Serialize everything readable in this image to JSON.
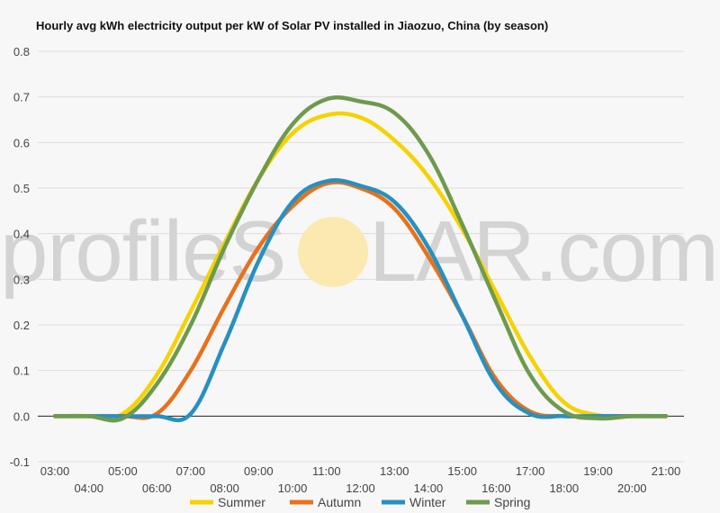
{
  "chart_data": {
    "type": "line",
    "title": "Hourly avg kWh electricity output per kW of Solar PV installed in Jiaozuo, China (by season)",
    "xlabel": "",
    "ylabel": "",
    "x": [
      3,
      4,
      5,
      6,
      7,
      8,
      9,
      10,
      11,
      12,
      13,
      14,
      15,
      16,
      17,
      18,
      19,
      20,
      21
    ],
    "x_tick_labels": [
      "03:00",
      "04:00",
      "05:00",
      "06:00",
      "07:00",
      "08:00",
      "09:00",
      "10:00",
      "11:00",
      "12:00",
      "13:00",
      "14:00",
      "15:00",
      "16:00",
      "17:00",
      "18:00",
      "19:00",
      "20:00",
      "21:00"
    ],
    "ylim": [
      -0.1,
      0.8
    ],
    "y_ticks": [
      -0.1,
      0.0,
      0.1,
      0.2,
      0.3,
      0.4,
      0.5,
      0.6,
      0.7,
      0.8
    ],
    "y_tick_labels": [
      "-0.1",
      "0.0",
      "0.1",
      "0.2",
      "0.3",
      "0.4",
      "0.5",
      "0.6",
      "0.7",
      "0.8"
    ],
    "grid": true,
    "legend_position": "bottom",
    "series": [
      {
        "name": "Summer",
        "color": "#f5d200",
        "values": [
          0,
          0,
          0.005,
          0.09,
          0.23,
          0.38,
          0.52,
          0.62,
          0.66,
          0.655,
          0.605,
          0.525,
          0.41,
          0.27,
          0.13,
          0.03,
          0.002,
          0,
          0
        ]
      },
      {
        "name": "Autumn",
        "color": "#e8711c",
        "values": [
          0,
          0,
          0,
          0.005,
          0.1,
          0.24,
          0.37,
          0.46,
          0.51,
          0.5,
          0.455,
          0.35,
          0.22,
          0.08,
          0.01,
          0,
          0,
          0,
          0
        ]
      },
      {
        "name": "Winter",
        "color": "#2890c0",
        "values": [
          0,
          0,
          0,
          0,
          0.005,
          0.16,
          0.34,
          0.47,
          0.515,
          0.505,
          0.47,
          0.37,
          0.22,
          0.07,
          0.005,
          0,
          0,
          0,
          0
        ]
      },
      {
        "name": "Spring",
        "color": "#6e9a4e",
        "values": [
          0,
          0,
          -0.005,
          0.07,
          0.2,
          0.37,
          0.52,
          0.64,
          0.695,
          0.69,
          0.665,
          0.575,
          0.42,
          0.25,
          0.09,
          0.01,
          -0.005,
          0,
          0
        ]
      }
    ]
  },
  "watermark": {
    "left": "profileS",
    "right": "LAR.com",
    "sun_color": "#fbe9b0"
  }
}
